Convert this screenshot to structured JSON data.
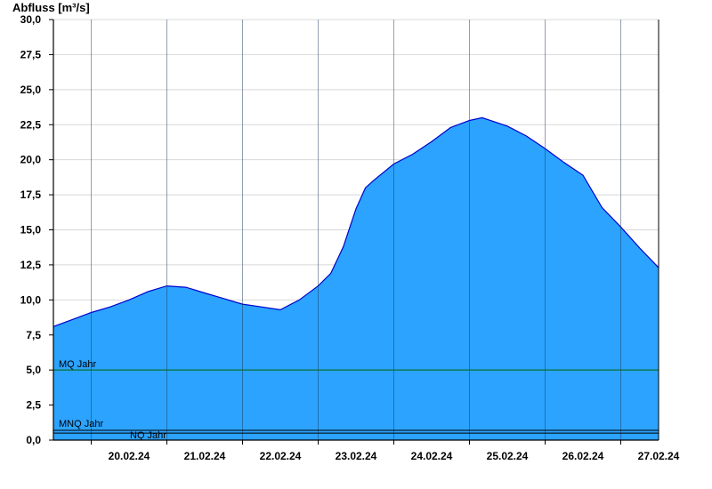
{
  "chart_data": {
    "type": "area",
    "ylabel": "Abfluss [m³/s]",
    "ylim": [
      0,
      30
    ],
    "yticks": [
      "0,0",
      "2,5",
      "5,0",
      "7,5",
      "10,0",
      "12,5",
      "15,0",
      "17,5",
      "20,0",
      "22,5",
      "25,0",
      "27,5",
      "30,0"
    ],
    "xticks": [
      "20.02.24",
      "21.02.24",
      "22.02.24",
      "23.02.24",
      "24.02.24",
      "25.02.24",
      "26.02.24",
      "27.02.24"
    ],
    "x_start": "2024-02-19T12:00",
    "x_end": "2024-02-27T12:00",
    "fill_color": "#2ba3ff",
    "line_color": "#0000cc",
    "grid": "horizontal",
    "series": [
      {
        "values": [
          [
            "2024-02-19T12:00",
            8.1
          ],
          [
            "2024-02-19T18:00",
            8.6
          ],
          [
            "2024-02-20T00:00",
            9.1
          ],
          [
            "2024-02-20T06:00",
            9.5
          ],
          [
            "2024-02-20T12:00",
            10.0
          ],
          [
            "2024-02-20T18:00",
            10.6
          ],
          [
            "2024-02-21T00:00",
            11.0
          ],
          [
            "2024-02-21T06:00",
            10.9
          ],
          [
            "2024-02-21T12:00",
            10.5
          ],
          [
            "2024-02-21T18:00",
            10.1
          ],
          [
            "2024-02-22T00:00",
            9.7
          ],
          [
            "2024-02-22T06:00",
            9.5
          ],
          [
            "2024-02-22T12:00",
            9.3
          ],
          [
            "2024-02-22T18:00",
            10.0
          ],
          [
            "2024-02-23T00:00",
            11.0
          ],
          [
            "2024-02-23T04:00",
            11.9
          ],
          [
            "2024-02-23T08:00",
            13.8
          ],
          [
            "2024-02-23T12:00",
            16.5
          ],
          [
            "2024-02-23T15:00",
            18.0
          ],
          [
            "2024-02-23T18:00",
            18.6
          ],
          [
            "2024-02-24T00:00",
            19.7
          ],
          [
            "2024-02-24T06:00",
            20.4
          ],
          [
            "2024-02-24T12:00",
            21.3
          ],
          [
            "2024-02-24T18:00",
            22.3
          ],
          [
            "2024-02-25T00:00",
            22.8
          ],
          [
            "2024-02-25T04:00",
            23.0
          ],
          [
            "2024-02-25T12:00",
            22.4
          ],
          [
            "2024-02-25T18:00",
            21.7
          ],
          [
            "2024-02-26T00:00",
            20.8
          ],
          [
            "2024-02-26T06:00",
            19.8
          ],
          [
            "2024-02-26T12:00",
            18.9
          ],
          [
            "2024-02-26T18:00",
            16.6
          ],
          [
            "2024-02-27T00:00",
            15.2
          ],
          [
            "2024-02-27T06:00",
            13.7
          ],
          [
            "2024-02-27T12:00",
            12.3
          ]
        ]
      }
    ],
    "reference_lines": [
      {
        "label": "MQ Jahr",
        "value": 5.0,
        "color": "#006400"
      },
      {
        "label": "MNQ Jahr",
        "value": 0.7,
        "color": "#000000"
      },
      {
        "label": "NQ Jahr",
        "value": 0.5,
        "color": "#000000"
      }
    ]
  }
}
